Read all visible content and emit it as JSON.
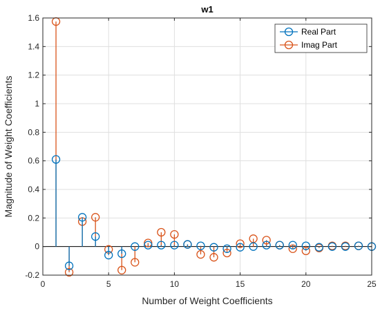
{
  "chart_data": {
    "type": "stem",
    "title": "w1",
    "xlabel": "Number of Weight Coefficients",
    "ylabel": "Magnitude of Weight Coefficients",
    "xlim": [
      0,
      25
    ],
    "ylim": [
      -0.2,
      1.6
    ],
    "xticks": [
      0,
      5,
      10,
      15,
      20,
      25
    ],
    "yticks": [
      -0.2,
      0,
      0.2,
      0.4,
      0.6,
      0.8,
      1,
      1.2,
      1.4,
      1.6
    ],
    "xtick_labels": [
      "0",
      "5",
      "10",
      "15",
      "20",
      "25"
    ],
    "ytick_labels": [
      "-0.2",
      "0",
      "0.2",
      "0.4",
      "0.6",
      "0.8",
      "1",
      "1.2",
      "1.4",
      "1.6"
    ],
    "grid": true,
    "legend_position": "top-right",
    "x": [
      1,
      2,
      3,
      4,
      5,
      6,
      7,
      8,
      9,
      10,
      11,
      12,
      13,
      14,
      15,
      16,
      17,
      18,
      19,
      20,
      21,
      22,
      23,
      24,
      25
    ],
    "series": [
      {
        "name": "Real Part",
        "color": "#0072BD",
        "values": [
          0.61,
          -0.135,
          0.205,
          0.07,
          -0.06,
          -0.05,
          0.0,
          0.01,
          0.01,
          0.01,
          0.015,
          0.005,
          -0.005,
          -0.015,
          -0.005,
          0.0,
          0.01,
          0.01,
          0.01,
          0.005,
          -0.005,
          0.0,
          0.0,
          0.005,
          0.0
        ]
      },
      {
        "name": "Imag Part",
        "color": "#D95319",
        "values": [
          1.575,
          -0.18,
          0.175,
          0.205,
          -0.02,
          -0.165,
          -0.11,
          0.025,
          0.1,
          0.085,
          0.015,
          -0.055,
          -0.075,
          -0.045,
          0.02,
          0.055,
          0.045,
          0.01,
          -0.015,
          -0.03,
          -0.01,
          0.005,
          0.005,
          0.005,
          0.0
        ]
      }
    ]
  }
}
